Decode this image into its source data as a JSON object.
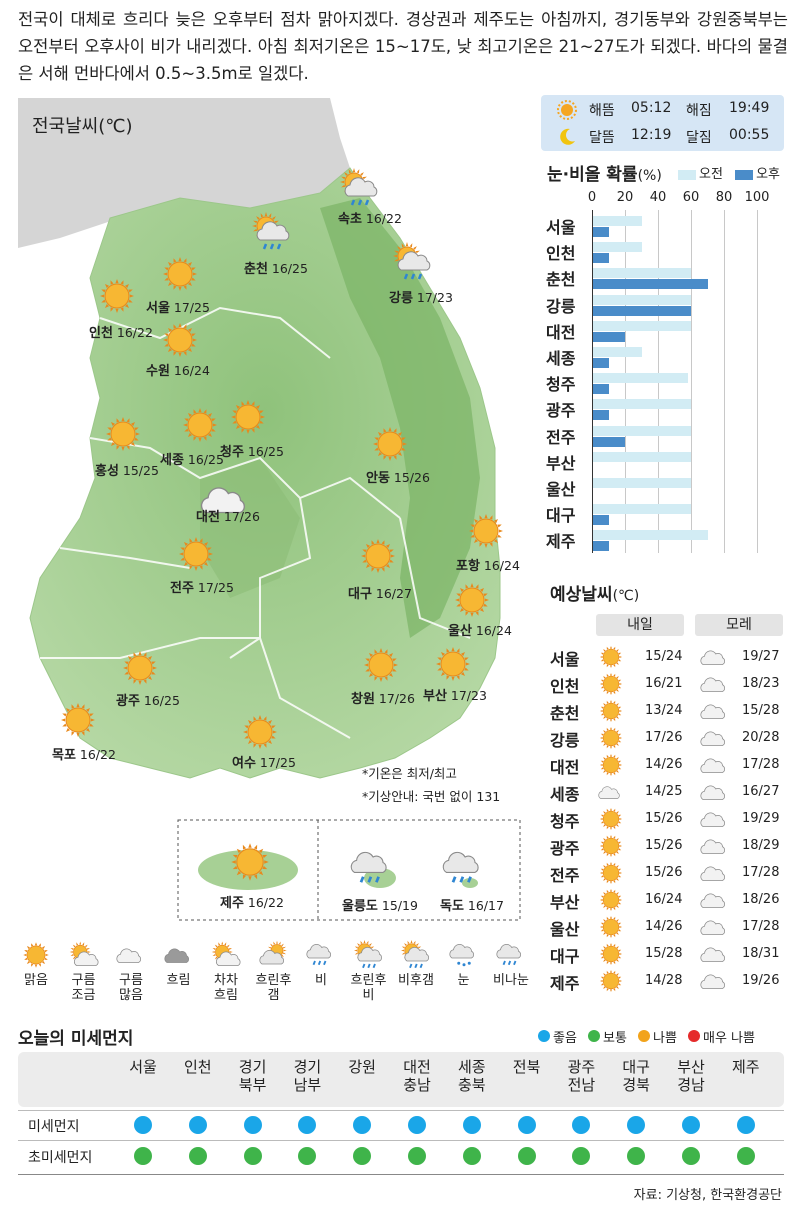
{
  "summary": "전국이 대체로 흐리다 늦은 오후부터 점차 맑아지겠다. 경상권과 제주도는 아침까지, 경기동부와 강원중북부는 오전부터 오후사이 비가 내리겠다. 아침 최저기온은 15~17도, 낮 최고기온은 21~27도가 되겠다. 바다의 물결은 서해 먼바다에서 0.5~3.5m로 일겠다.",
  "map": {
    "title": "전국날씨(℃)",
    "cities": [
      {
        "name": "속초",
        "temp": "16/22",
        "icon": "sun-rain-icon"
      },
      {
        "name": "춘천",
        "temp": "16/25",
        "icon": "sun-rain-icon"
      },
      {
        "name": "강릉",
        "temp": "17/23",
        "icon": "sun-rain-icon"
      },
      {
        "name": "서울",
        "temp": "17/25",
        "icon": "sun-icon"
      },
      {
        "name": "인천",
        "temp": "16/22",
        "icon": "sun-icon"
      },
      {
        "name": "수원",
        "temp": "16/24",
        "icon": "sun-icon"
      },
      {
        "name": "홍성",
        "temp": "15/25",
        "icon": "sun-icon"
      },
      {
        "name": "세종",
        "temp": "16/25",
        "icon": "sun-icon"
      },
      {
        "name": "청주",
        "temp": "16/25",
        "icon": "sun-icon"
      },
      {
        "name": "안동",
        "temp": "15/26",
        "icon": "sun-icon"
      },
      {
        "name": "대전",
        "temp": "17/26",
        "icon": "cloud-icon"
      },
      {
        "name": "포항",
        "temp": "16/24",
        "icon": "sun-icon"
      },
      {
        "name": "전주",
        "temp": "17/25",
        "icon": "sun-icon"
      },
      {
        "name": "대구",
        "temp": "16/27",
        "icon": "sun-icon"
      },
      {
        "name": "울산",
        "temp": "16/24",
        "icon": "sun-icon"
      },
      {
        "name": "광주",
        "temp": "16/25",
        "icon": "sun-icon"
      },
      {
        "name": "창원",
        "temp": "17/26",
        "icon": "sun-icon"
      },
      {
        "name": "부산",
        "temp": "17/23",
        "icon": "sun-icon"
      },
      {
        "name": "목포",
        "temp": "16/22",
        "icon": "sun-icon"
      },
      {
        "name": "여수",
        "temp": "17/25",
        "icon": "sun-icon"
      }
    ],
    "islands": [
      {
        "name": "제주",
        "temp": "16/22",
        "icon": "sun-icon"
      },
      {
        "name": "울릉도",
        "temp": "15/19",
        "icon": "cloud-rain-icon"
      },
      {
        "name": "독도",
        "temp": "16/17",
        "icon": "cloud-rain-icon"
      }
    ],
    "note1": "*기온은 최저/최고",
    "note2": "*기상안내: 국번 없이 131"
  },
  "sunmoon": {
    "sunrise_label": "해뜸",
    "sunrise": "05:12",
    "sunset_label": "해짐",
    "sunset": "19:49",
    "moonrise_label": "달뜸",
    "moonrise": "12:19",
    "moonset_label": "달짐",
    "moonset": "00:55"
  },
  "rain": {
    "title": "눈·비올 확률",
    "unit": "(%)",
    "legend_am": "오전",
    "legend_pm": "오후",
    "color_am": "#d2ecf4",
    "color_pm": "#4a8cc9",
    "chart_data": {
      "type": "bar",
      "categories": [
        "서울",
        "인천",
        "춘천",
        "강릉",
        "대전",
        "세종",
        "청주",
        "광주",
        "전주",
        "부산",
        "울산",
        "대구",
        "제주"
      ],
      "series": [
        {
          "name": "오전",
          "values": [
            30,
            30,
            60,
            60,
            60,
            30,
            58,
            60,
            60,
            60,
            60,
            60,
            70
          ]
        },
        {
          "name": "오후",
          "values": [
            10,
            10,
            70,
            60,
            20,
            10,
            10,
            10,
            20,
            0,
            0,
            10,
            10
          ]
        }
      ],
      "xticks": [
        "0",
        "20",
        "40",
        "60",
        "80",
        "100"
      ],
      "xlim": [
        0,
        100
      ]
    }
  },
  "forecast": {
    "title": "예상날씨",
    "unit": "(℃)",
    "tomorrow": "내일",
    "after": "모레",
    "rows": [
      {
        "city": "서울",
        "d1_icon": "sun-icon",
        "d1": "15/24",
        "d2_icon": "cloud-icon",
        "d2": "19/27"
      },
      {
        "city": "인천",
        "d1_icon": "sun-icon",
        "d1": "16/21",
        "d2_icon": "cloud-icon",
        "d2": "18/23"
      },
      {
        "city": "춘천",
        "d1_icon": "sun-icon",
        "d1": "13/24",
        "d2_icon": "cloud-icon",
        "d2": "15/28"
      },
      {
        "city": "강릉",
        "d1_icon": "sun-icon",
        "d1": "17/26",
        "d2_icon": "cloud-icon",
        "d2": "20/28"
      },
      {
        "city": "대전",
        "d1_icon": "sun-icon",
        "d1": "14/26",
        "d2_icon": "cloud-icon",
        "d2": "17/28"
      },
      {
        "city": "세종",
        "d1_icon": "cloud-icon",
        "d1": "14/25",
        "d2_icon": "cloud-icon",
        "d2": "16/27"
      },
      {
        "city": "청주",
        "d1_icon": "sun-icon",
        "d1": "15/26",
        "d2_icon": "cloud-icon",
        "d2": "19/29"
      },
      {
        "city": "광주",
        "d1_icon": "sun-icon",
        "d1": "15/26",
        "d2_icon": "cloud-icon",
        "d2": "18/29"
      },
      {
        "city": "전주",
        "d1_icon": "sun-icon",
        "d1": "15/26",
        "d2_icon": "cloud-icon",
        "d2": "17/28"
      },
      {
        "city": "부산",
        "d1_icon": "sun-icon",
        "d1": "16/24",
        "d2_icon": "cloud-icon",
        "d2": "18/26"
      },
      {
        "city": "울산",
        "d1_icon": "sun-icon",
        "d1": "14/26",
        "d2_icon": "cloud-icon",
        "d2": "17/28"
      },
      {
        "city": "대구",
        "d1_icon": "sun-icon",
        "d1": "15/28",
        "d2_icon": "cloud-icon",
        "d2": "18/31"
      },
      {
        "city": "제주",
        "d1_icon": "sun-icon",
        "d1": "14/28",
        "d2_icon": "cloud-icon",
        "d2": "19/26"
      }
    ]
  },
  "legend": [
    {
      "label": "맑음",
      "icon": "sun-icon"
    },
    {
      "label": "구름\n조금",
      "icon": "sun-cloud-icon"
    },
    {
      "label": "구름\n많음",
      "icon": "cloud-icon"
    },
    {
      "label": "흐림",
      "icon": "dark-cloud-icon"
    },
    {
      "label": "차차\n흐림",
      "icon": "sun-cloud-icon"
    },
    {
      "label": "흐린후\n갬",
      "icon": "cloud-sun-icon"
    },
    {
      "label": "비",
      "icon": "cloud-rain-icon"
    },
    {
      "label": "흐린후\n비",
      "icon": "sun-rain-icon"
    },
    {
      "label": "비후갬",
      "icon": "sun-rain-icon"
    },
    {
      "label": "눈",
      "icon": "cloud-snow-icon"
    },
    {
      "label": "비나눈",
      "icon": "cloud-rain-icon"
    }
  ],
  "dust": {
    "title": "오늘의 미세먼지",
    "legend": [
      {
        "label": "좋음",
        "color": "#1aa6e8"
      },
      {
        "label": "보통",
        "color": "#3fb44a"
      },
      {
        "label": "나쁨",
        "color": "#f2a31b"
      },
      {
        "label": "매우 나쁨",
        "color": "#e52b2b"
      }
    ],
    "regions": [
      "서울",
      "인천",
      "경기\n북부",
      "경기\n남부",
      "강원",
      "대전\n충남",
      "세종\n충북",
      "전북",
      "광주\n전남",
      "대구\n경북",
      "부산\n경남",
      "제주"
    ],
    "pm10_label": "미세먼지",
    "pm25_label": "초미세먼지",
    "pm10": [
      "좋음",
      "좋음",
      "좋음",
      "좋음",
      "좋음",
      "좋음",
      "좋음",
      "좋음",
      "좋음",
      "좋음",
      "좋음",
      "좋음"
    ],
    "pm25": [
      "보통",
      "보통",
      "보통",
      "보통",
      "보통",
      "보통",
      "보통",
      "보통",
      "보통",
      "보통",
      "보통",
      "보통"
    ]
  },
  "source": "자료: 기상청, 한국환경공단"
}
